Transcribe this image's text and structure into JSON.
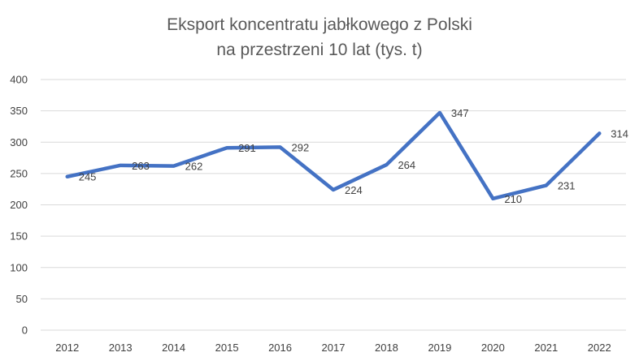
{
  "chart_data": {
    "type": "line",
    "title_lines": [
      "Eksport koncentratu jabłkowego z Polski",
      "na przestrzeni 10 lat (tys. t)"
    ],
    "categories": [
      "2012",
      "2013",
      "2014",
      "2015",
      "2016",
      "2017",
      "2018",
      "2019",
      "2020",
      "2021",
      "2022"
    ],
    "series": [
      {
        "values": [
          245,
          263,
          262,
          291,
          292,
          224,
          264,
          347,
          210,
          231,
          314
        ]
      }
    ],
    "ylim": [
      0,
      400
    ],
    "yticks": [
      0,
      50,
      100,
      150,
      200,
      250,
      300,
      350,
      400
    ],
    "grid": true,
    "legend": "none",
    "colors": {
      "line": "#4472c4",
      "grid": "#d9d9d9",
      "text": "#404040",
      "title": "#595959"
    }
  }
}
